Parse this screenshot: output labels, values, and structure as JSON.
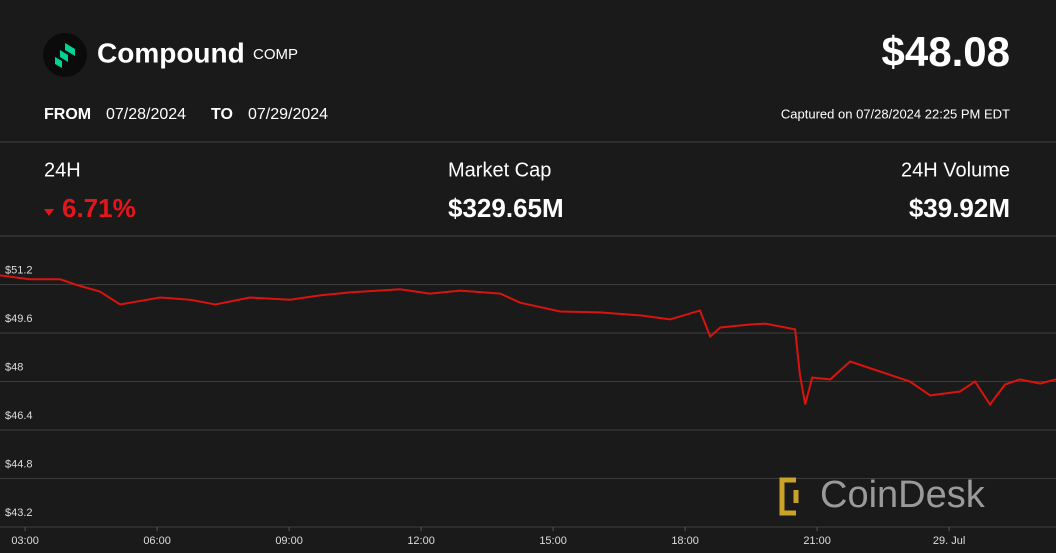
{
  "header": {
    "name": "Compound",
    "ticker": "COMP",
    "price": "$48.08",
    "from_label": "FROM",
    "from": "07/28/2024",
    "to_label": "TO",
    "to": "07/29/2024",
    "captured": "Captured on 07/28/2024 22:25 PM EDT"
  },
  "stats": [
    {
      "label": "24H",
      "value": "6.71%"
    },
    {
      "label": "Market Cap",
      "value": "$329.65M"
    },
    {
      "label": "24H Volume",
      "value": "$39.92M"
    }
  ],
  "watermark": "CoinDesk",
  "chart_data": {
    "type": "line",
    "color": "#d9140e",
    "grid": true,
    "x": [
      2.43,
      3.11,
      3.8,
      4.14,
      4.7,
      5.16,
      5.39,
      6.07,
      6.75,
      7.32,
      8.11,
      9.02,
      9.7,
      10.39,
      11.52,
      12.2,
      12.89,
      13.8,
      14.25,
      15.16,
      16.07,
      16.98,
      17.66,
      18.34,
      18.57,
      18.8,
      19.48,
      19.82,
      20.5,
      20.61,
      20.73,
      20.89,
      21.3,
      21.75,
      22.43,
      23.11,
      23.57,
      24.25,
      24.59,
      24.93,
      25.27,
      25.61,
      26.07,
      26.43
    ],
    "values": [
      51.5,
      51.37,
      51.37,
      51.2,
      50.97,
      50.54,
      50.6,
      50.77,
      50.7,
      50.54,
      50.77,
      50.7,
      50.84,
      50.94,
      51.04,
      50.9,
      51.0,
      50.9,
      50.6,
      50.31,
      50.28,
      50.18,
      50.05,
      50.34,
      49.48,
      49.78,
      49.88,
      49.91,
      49.72,
      48.23,
      47.24,
      48.13,
      48.07,
      48.66,
      48.33,
      48.0,
      47.54,
      47.67,
      48.0,
      47.24,
      47.9,
      48.07,
      47.93,
      48.07
    ],
    "xlim": [
      2.43,
      26.43
    ],
    "ylim": [
      43.2,
      52.8
    ],
    "xticks": [
      {
        "value": 3,
        "label": "03:00"
      },
      {
        "value": 6,
        "label": "06:00"
      },
      {
        "value": 9,
        "label": "09:00"
      },
      {
        "value": 12,
        "label": "12:00"
      },
      {
        "value": 15,
        "label": "15:00"
      },
      {
        "value": 18,
        "label": "18:00"
      },
      {
        "value": 21,
        "label": "21:00"
      },
      {
        "value": 24,
        "label": "29. Jul"
      }
    ],
    "yticks": [
      {
        "value": 43.2,
        "label": "$43.2"
      },
      {
        "value": 44.8,
        "label": "$44.8"
      },
      {
        "value": 46.4,
        "label": "$46.4"
      },
      {
        "value": 48,
        "label": "$48"
      },
      {
        "value": 49.6,
        "label": "$49.6"
      },
      {
        "value": 51.2,
        "label": "$51.2"
      }
    ]
  }
}
